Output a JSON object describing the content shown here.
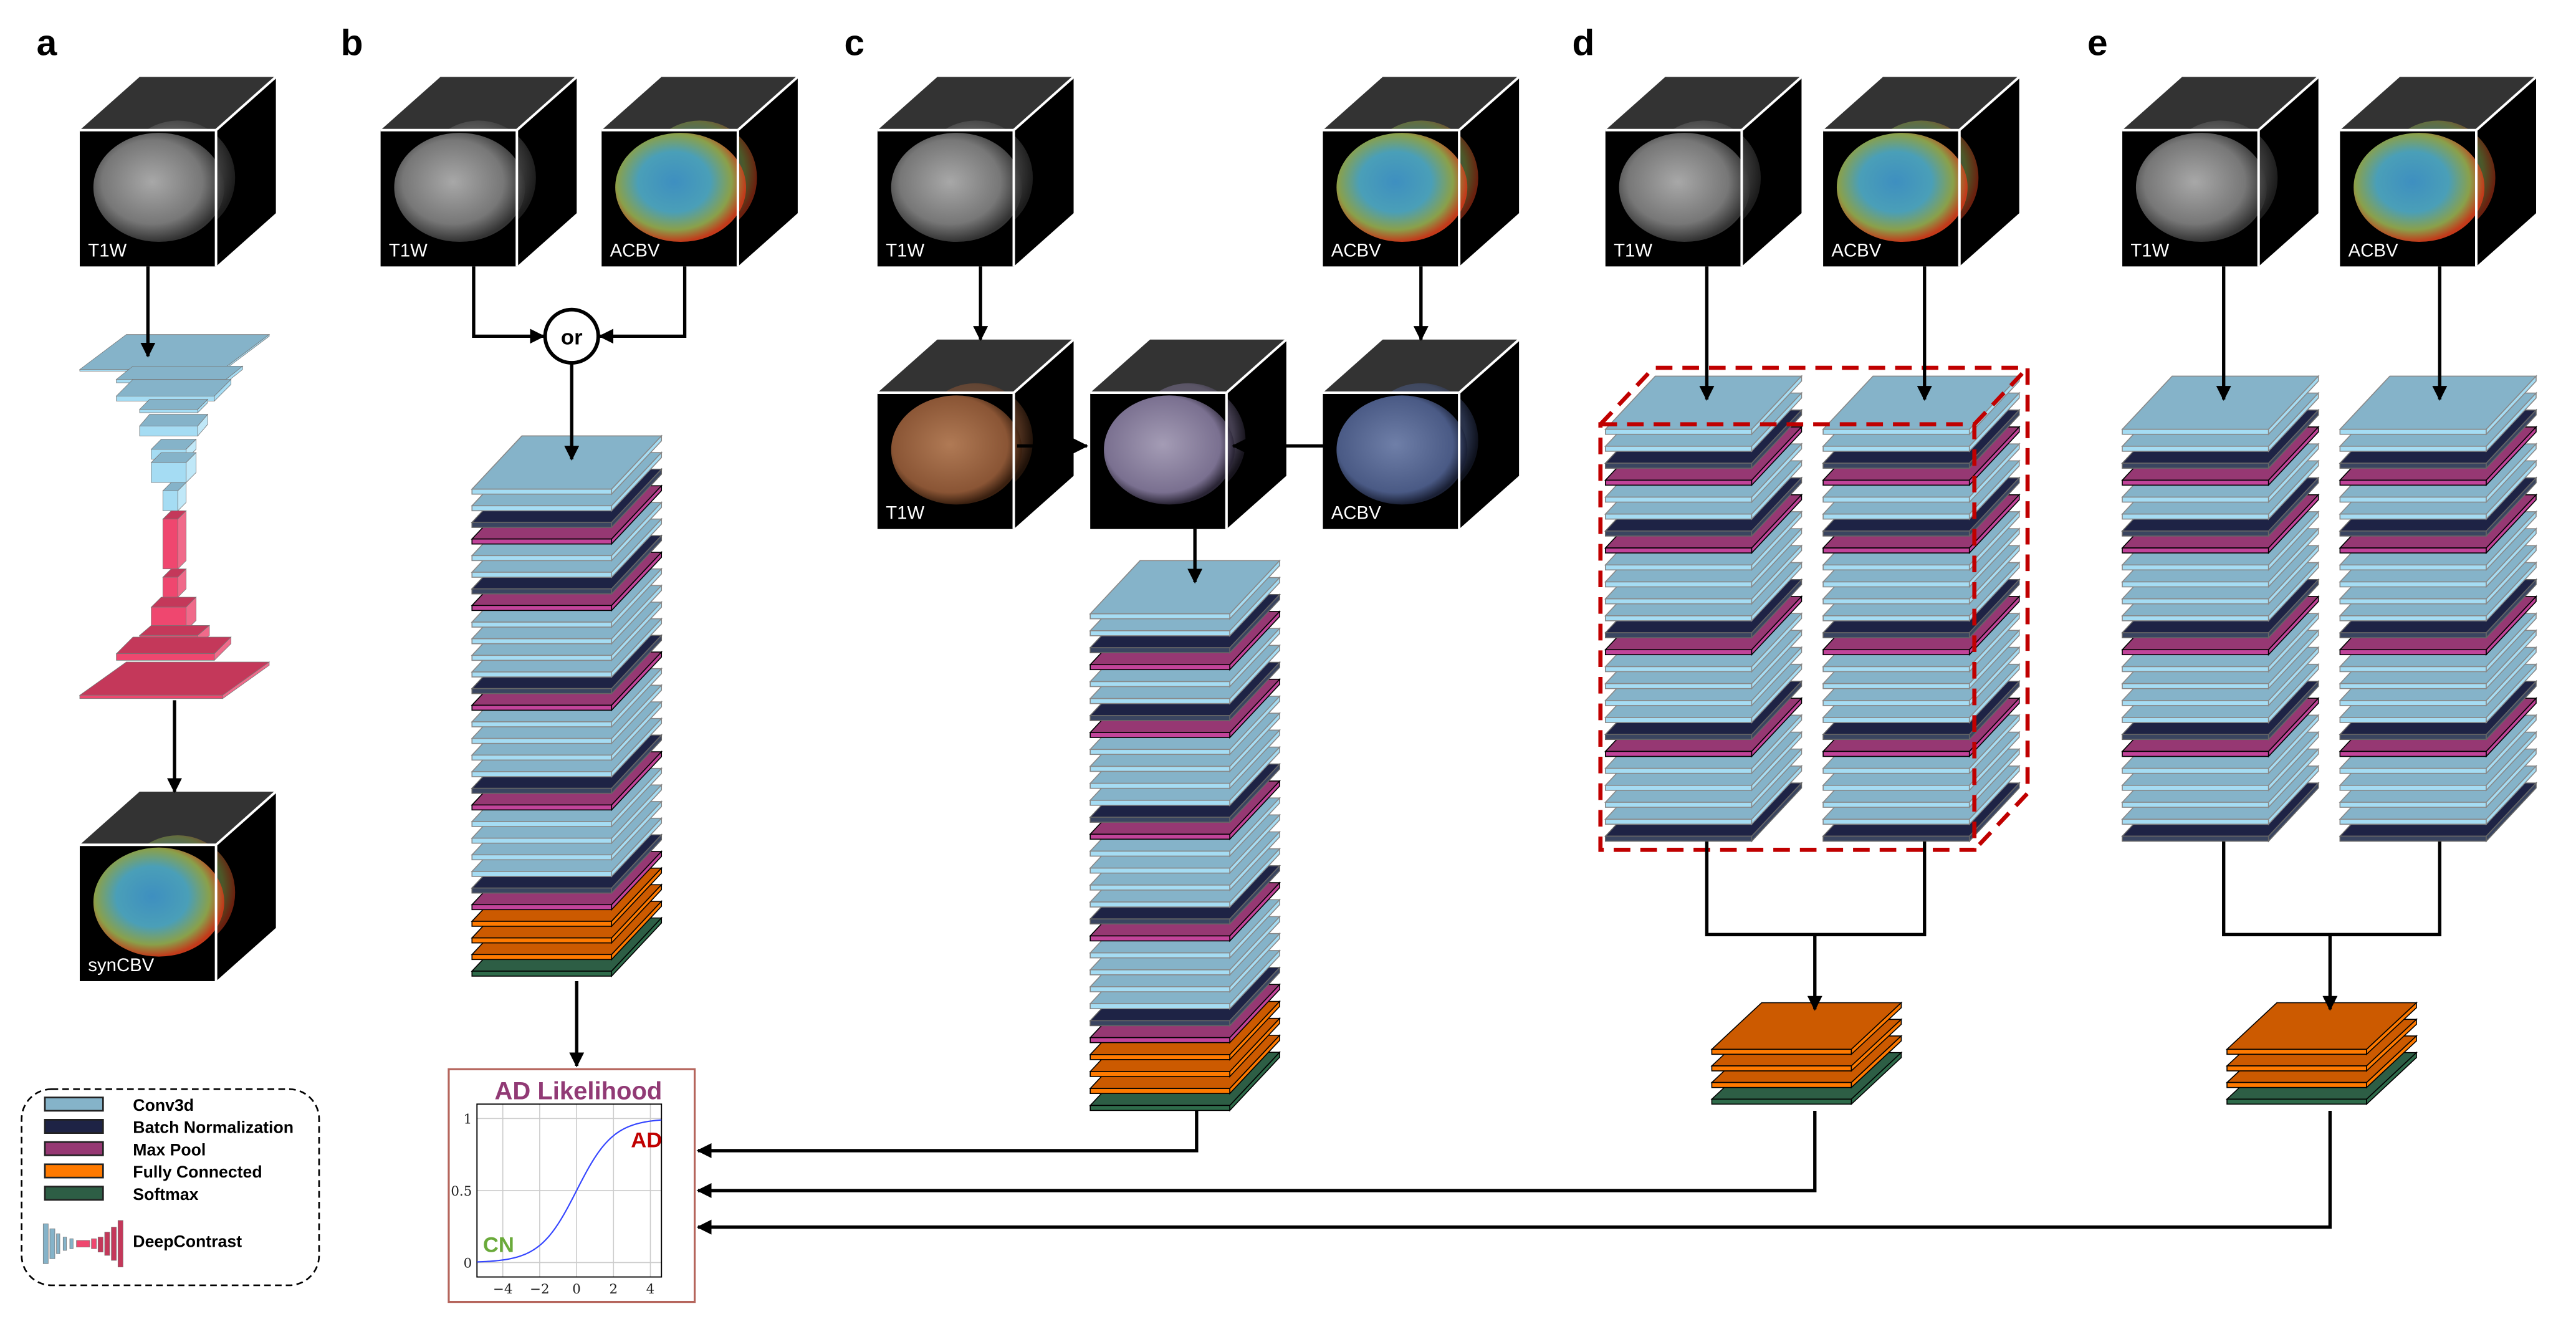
{
  "panels": {
    "a": "a",
    "b": "b",
    "c": "c",
    "d": "d",
    "e": "e"
  },
  "cubes": {
    "a_t1w": "T1W",
    "a_syncbv": "synCBV",
    "b_t1w": "T1W",
    "b_acbv": "ACBV",
    "c_t1w": "T1W",
    "c_acbv": "ACBV",
    "c_t1w_tinted": "T1W",
    "c_acbv_tinted": "ACBV",
    "d_t1w": "T1W",
    "d_acbv": "ACBV",
    "e_t1w": "T1W",
    "e_acbv": "ACBV"
  },
  "or_label": "or",
  "legend": {
    "items": [
      {
        "label": "Conv3d",
        "type": "conv",
        "color": "#85b3c9"
      },
      {
        "label": "Batch Normalization",
        "type": "bn",
        "color": "#1e2345"
      },
      {
        "label": "Max Pool",
        "type": "mp",
        "color": "#963873"
      },
      {
        "label": "Fully Connected",
        "type": "fc",
        "color": "#ff7a00"
      },
      {
        "label": "Softmax",
        "type": "sm",
        "color": "#2d5e45"
      }
    ],
    "deepcontrast_label": "DeepContrast"
  },
  "stacks": {
    "single_input": [
      "conv",
      "conv",
      "bn",
      "mp",
      "conv",
      "conv",
      "bn",
      "mp",
      "conv",
      "conv",
      "conv",
      "conv",
      "bn",
      "mp",
      "conv",
      "conv",
      "conv",
      "conv",
      "bn",
      "mp",
      "conv",
      "conv",
      "conv",
      "conv",
      "bn",
      "mp",
      "fc",
      "fc",
      "fc",
      "sm"
    ],
    "branch": [
      "conv",
      "conv",
      "bn",
      "mp",
      "conv",
      "conv",
      "bn",
      "mp",
      "conv",
      "conv",
      "conv",
      "conv",
      "bn",
      "mp",
      "conv",
      "conv",
      "conv",
      "conv",
      "bn",
      "mp",
      "conv",
      "conv",
      "conv",
      "conv",
      "bn"
    ],
    "head": [
      "fc",
      "fc",
      "fc",
      "sm"
    ]
  },
  "colors": {
    "conv": [
      "#85b3c9",
      "#a5dcf3",
      "#888888"
    ],
    "bn": [
      "#1e2345",
      "#3a4560",
      "#666666"
    ],
    "mp": [
      "#963873",
      "#c2449a",
      "#000000"
    ],
    "fc": [
      "#cc5a00",
      "#ff7a00",
      "#000000"
    ],
    "sm": [
      "#2d5e45",
      "#2e6b4a",
      "#000000"
    ],
    "highlight_box": "#c00000"
  },
  "chart_data": {
    "type": "line",
    "title": "AD Likelihood",
    "title_color": "#913a75",
    "xlim": [
      -5.4,
      4.6
    ],
    "ylim": [
      -0.1,
      1.1
    ],
    "xticks": [
      -4,
      -2,
      0,
      2,
      4
    ],
    "xtick_labels": [
      "−4",
      "−2",
      "0",
      "2",
      "4"
    ],
    "yticks": [
      0,
      0.5,
      1
    ],
    "ytick_labels": [
      "0",
      "0.5",
      "1"
    ],
    "grid": true,
    "series": [
      {
        "function": "logistic 1/(1+e^-x)",
        "color": "#3344ff",
        "x": [
          -5.4,
          -5,
          -4,
          -3,
          -2,
          -1,
          0,
          1,
          2,
          3,
          4,
          4.6
        ],
        "y": [
          0.004,
          0.007,
          0.018,
          0.047,
          0.119,
          0.269,
          0.5,
          0.731,
          0.881,
          0.953,
          0.982,
          0.99
        ]
      }
    ],
    "annotations": [
      {
        "text": "AD",
        "color": "#c00000"
      },
      {
        "text": "CN",
        "color": "#6aaa3a"
      }
    ]
  }
}
